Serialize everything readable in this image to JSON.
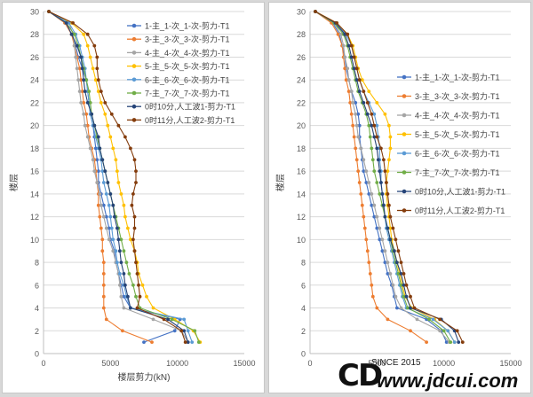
{
  "chart_data": [
    {
      "type": "line",
      "xlabel": "楼层剪力(kN)",
      "ylabel": "楼层",
      "xlim": [
        0,
        15000
      ],
      "ylim": [
        0,
        30
      ],
      "xticks": [
        "0",
        "5000",
        "10000",
        "15000"
      ],
      "yticks": [
        "0",
        "2",
        "4",
        "6",
        "8",
        "10",
        "12",
        "14",
        "16",
        "18",
        "20",
        "22",
        "24",
        "26",
        "28",
        "30"
      ],
      "grid": "horizontal",
      "legend_position": "top-right",
      "series": [
        {
          "name": "1-主_1-次_1-次-剪力-T1",
          "color": "#4472c4",
          "values": [
            7500,
            9800,
            10200,
            6500,
            6000,
            5800,
            5600,
            5400,
            5300,
            5000,
            4900,
            4700,
            4500,
            4300,
            4100,
            4100,
            4000,
            3900,
            3800,
            3700,
            3500,
            3400,
            3300,
            3200,
            2900,
            2600,
            2400,
            2100,
            1600,
            400
          ]
        },
        {
          "name": "3-主_3-次_3-次-剪力-T1",
          "color": "#ed7d31",
          "values": [
            8100,
            5900,
            4700,
            4500,
            4500,
            4500,
            4500,
            4500,
            4400,
            4400,
            4300,
            4200,
            4100,
            4100,
            4000,
            3900,
            3800,
            3600,
            3400,
            3300,
            3200,
            3000,
            2900,
            2800,
            2700,
            2500,
            2300,
            2100,
            1600,
            400
          ]
        },
        {
          "name": "4-主_4-次_4-次-剪力-T1",
          "color": "#a5a5a5",
          "values": [
            10800,
            10300,
            8200,
            6000,
            5800,
            5700,
            5600,
            5400,
            5200,
            4900,
            4700,
            4500,
            4300,
            4200,
            4000,
            3800,
            3700,
            3500,
            3300,
            3100,
            3000,
            2800,
            2700,
            2600,
            2500,
            2400,
            2300,
            2200,
            1900,
            400
          ]
        },
        {
          "name": "5-主_5-次_5-次-剪力-T1",
          "color": "#ffc000",
          "values": [
            11700,
            11200,
            9800,
            8200,
            7700,
            7400,
            7100,
            7000,
            6800,
            6500,
            6300,
            6100,
            6000,
            5800,
            5600,
            5500,
            5400,
            5200,
            5000,
            4800,
            4600,
            4300,
            4100,
            3900,
            3700,
            3500,
            3300,
            3000,
            2100,
            400
          ]
        },
        {
          "name": "6-主_6-次_6-次-剪力-T1",
          "color": "#5b9bd5",
          "values": [
            11100,
            10800,
            10500,
            6500,
            6200,
            6000,
            5700,
            5500,
            5400,
            5200,
            5100,
            5000,
            4900,
            4700,
            4500,
            4400,
            4300,
            4100,
            3900,
            3700,
            3500,
            3400,
            3300,
            3200,
            3100,
            2900,
            2700,
            2400,
            1900,
            400
          ]
        },
        {
          "name": "7-主_7-次_7-次-剪力-T1",
          "color": "#70ad47",
          "values": [
            11600,
            11300,
            9600,
            7200,
            6900,
            6700,
            6400,
            6200,
            6000,
            5800,
            5600,
            5400,
            5200,
            5000,
            4800,
            4600,
            4400,
            4200,
            4000,
            3800,
            3600,
            3500,
            3400,
            3200,
            3000,
            2800,
            2600,
            2300,
            1700,
            400
          ]
        },
        {
          "name": "0时10分,人工波1-剪力-T1",
          "color": "#264478",
          "values": [
            10800,
            10500,
            9300,
            6500,
            6300,
            6100,
            6000,
            5800,
            5700,
            5600,
            5500,
            5300,
            5200,
            5000,
            4800,
            4600,
            4400,
            4200,
            4100,
            3800,
            3600,
            3300,
            3100,
            3000,
            2900,
            2800,
            2500,
            2100,
            1700,
            400
          ]
        },
        {
          "name": "0时11分,人工波2-剪力-T1",
          "color": "#843c0c",
          "values": [
            10600,
            10300,
            9000,
            7000,
            7200,
            7100,
            7000,
            6900,
            6800,
            6700,
            6800,
            6800,
            6600,
            6700,
            6900,
            6900,
            6800,
            6500,
            6100,
            5600,
            5100,
            4600,
            4300,
            4100,
            4000,
            4000,
            3800,
            3300,
            2200,
            400
          ]
        }
      ]
    },
    {
      "type": "line",
      "xlabel": "",
      "ylabel": "楼层",
      "xlim": [
        0,
        15000
      ],
      "ylim": [
        0,
        30
      ],
      "xticks": [
        "0",
        "5000",
        "10000",
        "15000"
      ],
      "yticks": [
        "0",
        "2",
        "4",
        "6",
        "8",
        "10",
        "12",
        "14",
        "16",
        "18",
        "20",
        "22",
        "24",
        "26",
        "28",
        "30"
      ],
      "grid": "horizontal",
      "legend_position": "right",
      "series": [
        {
          "name": "1-主_1-次_1-次-剪力-T1",
          "color": "#4472c4",
          "values": [
            10200,
            9800,
            8700,
            6500,
            6300,
            6100,
            5800,
            5600,
            5400,
            5200,
            5000,
            4800,
            4600,
            4400,
            4200,
            4000,
            3900,
            3800,
            3700,
            3700,
            3600,
            3400,
            3100,
            2900,
            2700,
            2600,
            2400,
            2200,
            1700,
            400
          ]
        },
        {
          "name": "3-主_3-次_3-次-剪力-T1",
          "color": "#ed7d31",
          "values": [
            8700,
            7500,
            5800,
            5000,
            4700,
            4600,
            4500,
            4400,
            4300,
            4200,
            4100,
            4000,
            3900,
            3800,
            3700,
            3600,
            3500,
            3400,
            3300,
            3200,
            3100,
            3000,
            2900,
            2700,
            2600,
            2500,
            2400,
            2100,
            1600,
            400
          ]
        },
        {
          "name": "4-主_4-次_4-次-剪力-T1",
          "color": "#a5a5a5",
          "values": [
            10400,
            9700,
            8000,
            6800,
            6400,
            6200,
            6000,
            5800,
            5600,
            5400,
            5200,
            5000,
            4800,
            4600,
            4400,
            4200,
            4000,
            3800,
            3600,
            3500,
            3400,
            3200,
            3100,
            2900,
            2800,
            2600,
            2500,
            2300,
            1800,
            400
          ]
        },
        {
          "name": "5-主_5-次_5-次-剪力-T1",
          "color": "#ffc000",
          "values": [
            10800,
            10300,
            9300,
            7600,
            7100,
            6900,
            6700,
            6500,
            6300,
            6100,
            6000,
            5900,
            5800,
            5700,
            5700,
            5800,
            5900,
            6000,
            6000,
            5900,
            5600,
            5000,
            4400,
            3900,
            3600,
            3400,
            3200,
            2800,
            2000,
            400
          ]
        },
        {
          "name": "6-主_6-次_6-次-剪力-T1",
          "color": "#5b9bd5",
          "values": [
            10800,
            10300,
            9200,
            7200,
            6900,
            6700,
            6500,
            6300,
            6100,
            5900,
            5700,
            5600,
            5500,
            5400,
            5300,
            5300,
            5200,
            5200,
            5100,
            5000,
            4800,
            4400,
            4000,
            3700,
            3500,
            3300,
            3100,
            2700,
            1900,
            400
          ]
        },
        {
          "name": "7-主_7-次_7-次-剪力-T1",
          "color": "#70ad47",
          "values": [
            10500,
            10000,
            8900,
            7300,
            7000,
            6800,
            6600,
            6400,
            6200,
            6000,
            5800,
            5600,
            5400,
            5200,
            5000,
            4800,
            4700,
            4600,
            4500,
            4400,
            4200,
            3900,
            3600,
            3400,
            3200,
            3000,
            2800,
            2500,
            1800,
            400
          ]
        },
        {
          "name": "0时10分,人工波1-剪力-T1",
          "color": "#264478",
          "values": [
            11100,
            10800,
            9800,
            7500,
            7200,
            7000,
            6800,
            6500,
            6300,
            6000,
            5800,
            5600,
            5500,
            5400,
            5300,
            5200,
            5100,
            5000,
            4800,
            4600,
            4300,
            4000,
            3700,
            3500,
            3300,
            3100,
            2900,
            2600,
            1900,
            400
          ]
        },
        {
          "name": "0时11分,人工波2-剪力-T1",
          "color": "#843c0c",
          "values": [
            11400,
            11000,
            9700,
            7800,
            7500,
            7200,
            7000,
            6800,
            6600,
            6400,
            6200,
            6000,
            5900,
            5800,
            5700,
            5600,
            5500,
            5300,
            5000,
            4800,
            4600,
            4300,
            4000,
            3700,
            3500,
            3300,
            3100,
            2800,
            2000,
            400
          ]
        }
      ]
    }
  ],
  "watermark": {
    "logo_text": "CD",
    "since_text": "SINCE 2015",
    "url_text": "www.jdcui.com"
  }
}
